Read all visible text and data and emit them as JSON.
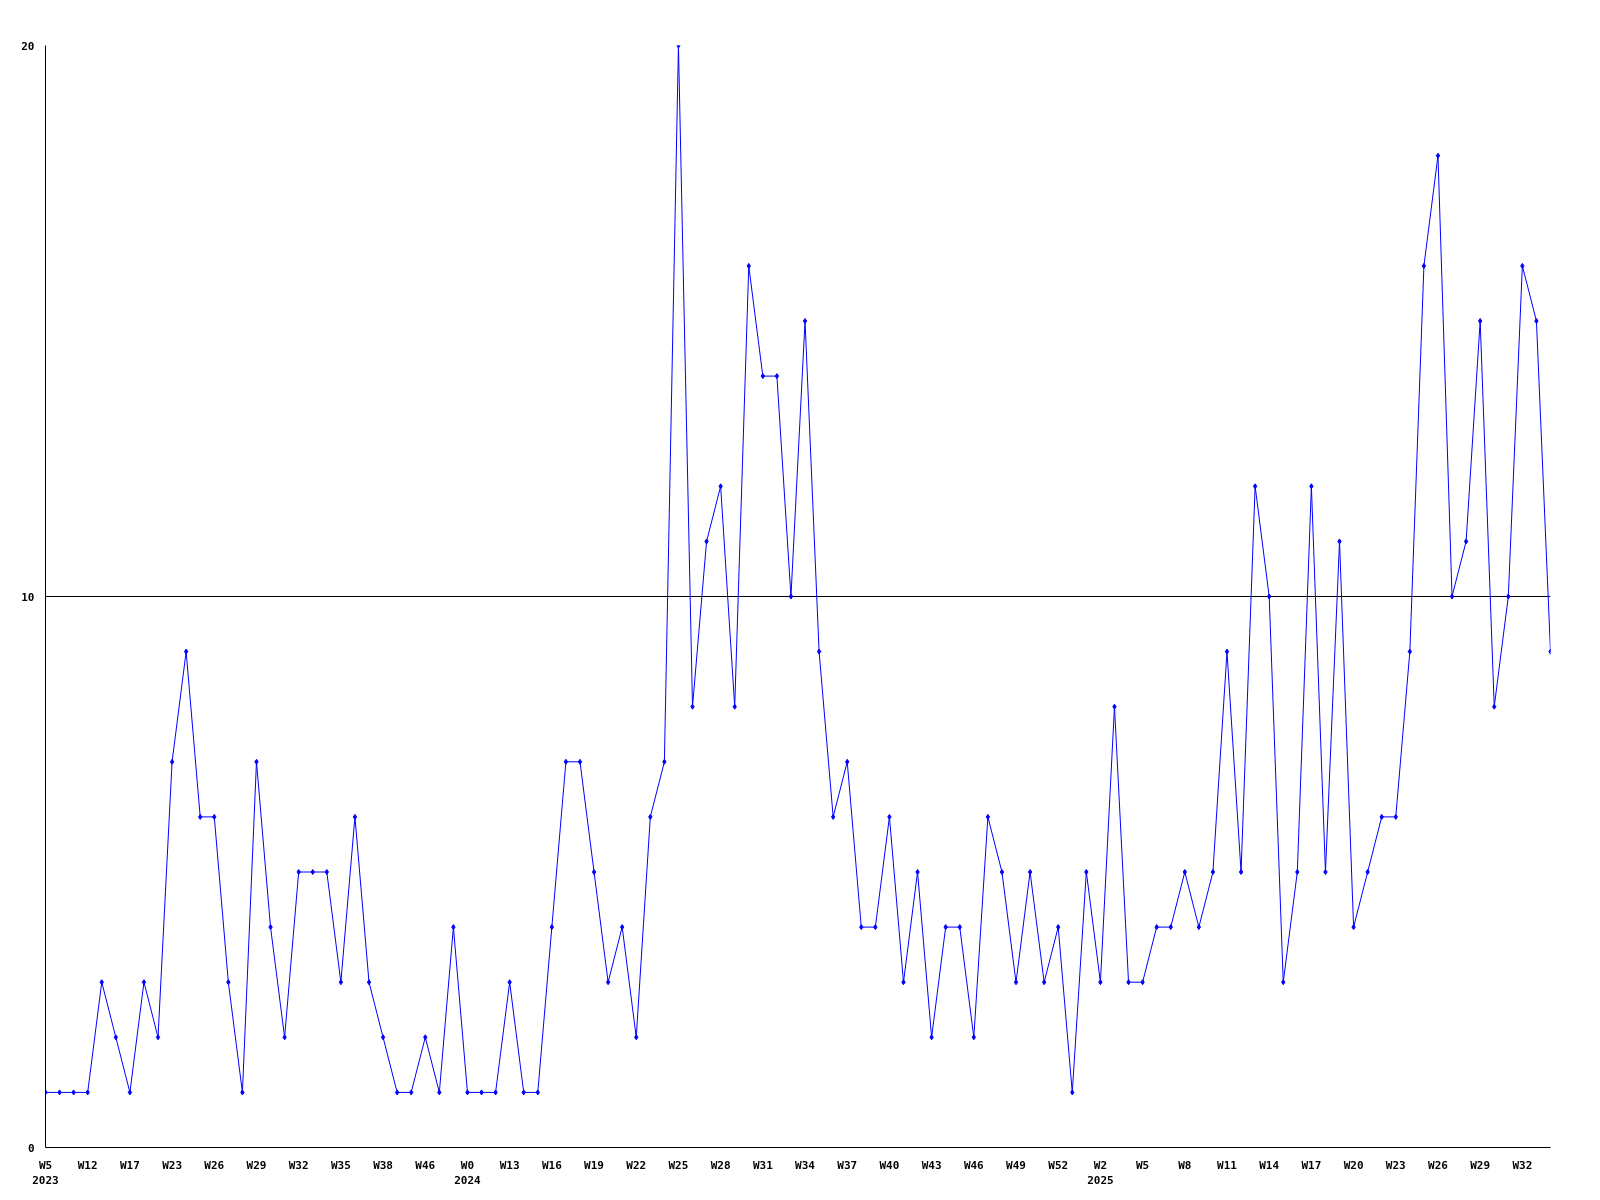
{
  "chart_data": {
    "type": "line",
    "marker": "diamond",
    "grid": "y",
    "categories": [
      "W5\n2023",
      null,
      null,
      "W12",
      null,
      null,
      "W17",
      null,
      null,
      "W23",
      null,
      null,
      "W26",
      null,
      null,
      "W29",
      null,
      null,
      "W32",
      null,
      null,
      "W35",
      null,
      null,
      "W38",
      null,
      null,
      "W46",
      null,
      null,
      "W0\n2024",
      null,
      null,
      "W13",
      null,
      null,
      "W16",
      null,
      null,
      "W19",
      null,
      null,
      "W22",
      null,
      null,
      "W25",
      null,
      null,
      "W28",
      null,
      null,
      "W31",
      null,
      null,
      "W34",
      null,
      null,
      "W37",
      null,
      null,
      "W40",
      null,
      null,
      "W43",
      null,
      null,
      "W46",
      null,
      null,
      "W49",
      null,
      null,
      "W52",
      null,
      null,
      "W2\n2025",
      null,
      null,
      "W5",
      null,
      null,
      "W8",
      null,
      null,
      "W11",
      null,
      null,
      "W14",
      null,
      null,
      "W17",
      null,
      null,
      "W20",
      null,
      null,
      "W23",
      null,
      null,
      "W26",
      null,
      null,
      "W29",
      null,
      null,
      "W32",
      null,
      null
    ],
    "series": [
      {
        "color": "#0000ff",
        "values": [
          1,
          1,
          1,
          1,
          3,
          2,
          1,
          3,
          2,
          7,
          9,
          6,
          6,
          3,
          1,
          7,
          4,
          2,
          5,
          5,
          5,
          3,
          6,
          3,
          2,
          1,
          1,
          2,
          1,
          4,
          1,
          1,
          1,
          3,
          1,
          1,
          4,
          7,
          7,
          5,
          3,
          4,
          2,
          6,
          7,
          20,
          8,
          11,
          12,
          8,
          16,
          14,
          14,
          10,
          15,
          9,
          6,
          7,
          4,
          4,
          6,
          3,
          5,
          2,
          4,
          4,
          2,
          6,
          5,
          3,
          5,
          3,
          4,
          1,
          5,
          3,
          8,
          3,
          3,
          4,
          4,
          5,
          4,
          5,
          9,
          5,
          12,
          10,
          3,
          5,
          12,
          5,
          11,
          4,
          5,
          6,
          6,
          9,
          16,
          18,
          10,
          11,
          15,
          8,
          10,
          16,
          15,
          9
        ]
      }
    ],
    "ylim": [
      0,
      20
    ],
    "yticks": [
      0,
      10,
      20
    ]
  }
}
